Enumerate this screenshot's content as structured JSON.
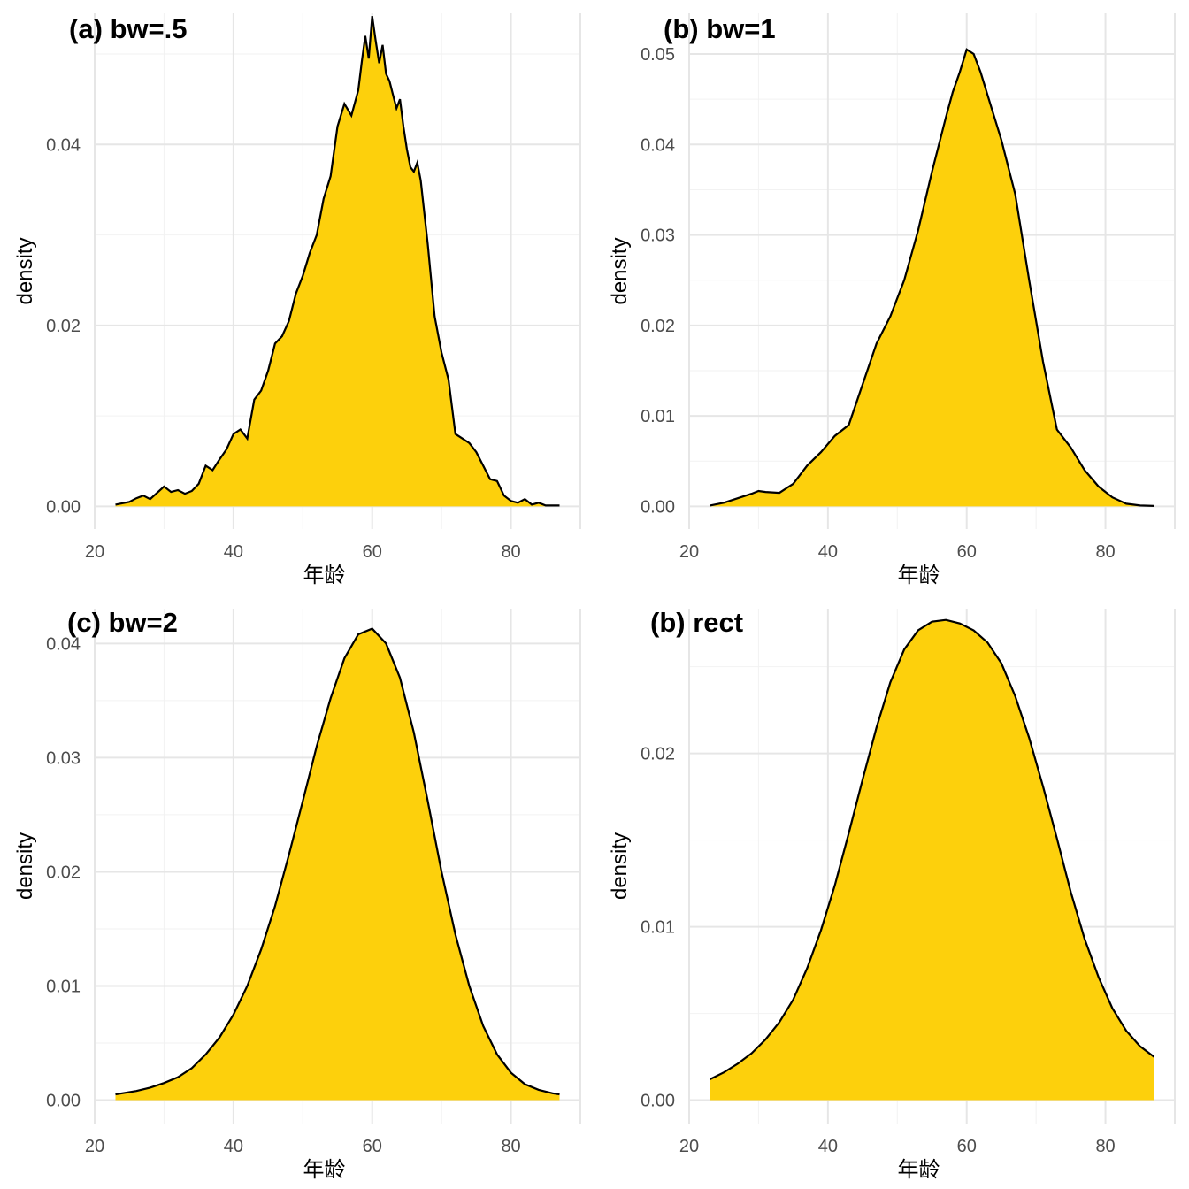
{
  "colors": {
    "fill": "#FDD00C",
    "line": "#000000",
    "grid": "#e6e6e6"
  },
  "chart_data": [
    {
      "type": "area",
      "title": "(a) bw=.5",
      "xlabel": "年龄",
      "ylabel": "density",
      "xlim": [
        20,
        90
      ],
      "ylim": [
        -0.0025,
        0.0545
      ],
      "xticks": [
        20,
        40,
        60,
        80
      ],
      "yticks": [
        0.0,
        0.02,
        0.04
      ],
      "ytick_labels": [
        "0.00",
        "0.02",
        "0.04"
      ],
      "grid": true,
      "x": [
        23,
        25,
        26,
        27,
        28,
        29,
        30,
        31,
        32,
        33,
        34,
        35,
        36,
        37,
        38,
        39,
        40,
        41,
        42,
        43,
        44,
        45,
        46,
        47,
        48,
        49,
        50,
        51,
        52,
        53,
        54,
        55,
        56,
        57,
        58,
        58.5,
        59,
        59.5,
        60,
        60.5,
        61,
        61.5,
        62,
        62.5,
        63,
        63.5,
        64,
        64.5,
        65,
        65.5,
        66,
        66.5,
        67,
        68,
        69,
        70,
        71,
        72,
        73,
        74,
        75,
        76,
        77,
        78,
        79,
        80,
        81,
        82,
        83,
        84,
        85,
        86,
        87
      ],
      "values": [
        0.0002,
        0.0005,
        0.0009,
        0.0012,
        0.0008,
        0.0015,
        0.0022,
        0.0016,
        0.0018,
        0.0014,
        0.0017,
        0.0025,
        0.0045,
        0.004,
        0.0052,
        0.0063,
        0.008,
        0.0085,
        0.0075,
        0.0118,
        0.0128,
        0.015,
        0.018,
        0.0188,
        0.0205,
        0.0235,
        0.0255,
        0.028,
        0.03,
        0.034,
        0.0365,
        0.042,
        0.0445,
        0.0432,
        0.046,
        0.0492,
        0.052,
        0.0495,
        0.0542,
        0.0515,
        0.049,
        0.051,
        0.0478,
        0.047,
        0.0455,
        0.044,
        0.045,
        0.042,
        0.0395,
        0.0375,
        0.037,
        0.038,
        0.036,
        0.029,
        0.021,
        0.017,
        0.014,
        0.008,
        0.0075,
        0.007,
        0.006,
        0.0045,
        0.003,
        0.0028,
        0.0012,
        0.0006,
        0.0004,
        0.0008,
        0.0002,
        0.0004,
        0.0001,
        0.0001,
        0.0001
      ]
    },
    {
      "type": "area",
      "title": "(b) bw=1",
      "xlabel": "年龄",
      "ylabel": "density",
      "xlim": [
        20,
        90
      ],
      "ylim": [
        -0.0025,
        0.0545
      ],
      "xticks": [
        20,
        40,
        60,
        80
      ],
      "yticks": [
        0.0,
        0.01,
        0.02,
        0.03,
        0.04,
        0.05
      ],
      "ytick_labels": [
        "0.00",
        "0.01",
        "0.02",
        "0.03",
        "0.04",
        "0.05"
      ],
      "grid": true,
      "x": [
        23,
        25,
        27,
        29,
        30,
        31,
        33,
        35,
        37,
        39,
        41,
        43,
        45,
        47,
        49,
        51,
        53,
        55,
        57,
        58,
        59,
        60,
        61,
        62,
        63,
        65,
        67,
        69,
        71,
        73,
        75,
        77,
        79,
        81,
        83,
        85,
        87
      ],
      "values": [
        0.0001,
        0.0004,
        0.0009,
        0.0014,
        0.0017,
        0.0016,
        0.0015,
        0.0025,
        0.0045,
        0.006,
        0.0078,
        0.009,
        0.0135,
        0.018,
        0.021,
        0.025,
        0.0305,
        0.037,
        0.043,
        0.0458,
        0.048,
        0.0505,
        0.05,
        0.048,
        0.0455,
        0.0405,
        0.0345,
        0.025,
        0.016,
        0.0085,
        0.0065,
        0.004,
        0.0022,
        0.001,
        0.0003,
        0.0001,
        5e-05
      ]
    },
    {
      "type": "area",
      "title": "(c) bw=2",
      "xlabel": "年龄",
      "ylabel": "density",
      "xlim": [
        20,
        90
      ],
      "ylim": [
        -0.00205,
        0.04305
      ],
      "xticks": [
        20,
        40,
        60,
        80
      ],
      "yticks": [
        0.0,
        0.01,
        0.02,
        0.03,
        0.04
      ],
      "ytick_labels": [
        "0.00",
        "0.01",
        "0.02",
        "0.03",
        "0.04"
      ],
      "grid": true,
      "x": [
        23,
        26,
        28,
        30,
        32,
        34,
        36,
        38,
        40,
        42,
        44,
        46,
        48,
        50,
        52,
        54,
        56,
        58,
        60,
        62,
        64,
        66,
        68,
        70,
        72,
        74,
        76,
        78,
        80,
        82,
        84,
        86,
        87
      ],
      "values": [
        0.0005,
        0.0008,
        0.0011,
        0.0015,
        0.002,
        0.0028,
        0.004,
        0.0055,
        0.0075,
        0.01,
        0.0132,
        0.017,
        0.0215,
        0.0262,
        0.031,
        0.0352,
        0.0387,
        0.0408,
        0.0413,
        0.04,
        0.037,
        0.0322,
        0.0262,
        0.02,
        0.0145,
        0.01,
        0.0065,
        0.004,
        0.0024,
        0.0014,
        0.0009,
        0.0006,
        0.0005
      ]
    },
    {
      "type": "area",
      "title": "(b) rect",
      "xlabel": "年龄",
      "ylabel": "density",
      "xlim": [
        20,
        90
      ],
      "ylim": [
        -0.00135,
        0.02835
      ],
      "xticks": [
        20,
        40,
        60,
        80
      ],
      "yticks": [
        0.0,
        0.01,
        0.02
      ],
      "ytick_labels": [
        "0.00",
        "0.01",
        "0.02"
      ],
      "grid": true,
      "x": [
        23,
        25,
        27,
        29,
        31,
        33,
        35,
        37,
        39,
        41,
        43,
        45,
        47,
        49,
        51,
        53,
        55,
        57,
        59,
        61,
        63,
        65,
        67,
        69,
        71,
        73,
        75,
        77,
        79,
        81,
        83,
        85,
        87
      ],
      "values": [
        0.0012,
        0.0016,
        0.0021,
        0.0027,
        0.0035,
        0.0045,
        0.0058,
        0.0076,
        0.0098,
        0.0124,
        0.0154,
        0.0185,
        0.0215,
        0.0241,
        0.026,
        0.0271,
        0.0276,
        0.0277,
        0.0275,
        0.0271,
        0.0264,
        0.0252,
        0.0233,
        0.0209,
        0.0181,
        0.0151,
        0.012,
        0.0093,
        0.0071,
        0.0053,
        0.004,
        0.0031,
        0.0025
      ]
    }
  ]
}
